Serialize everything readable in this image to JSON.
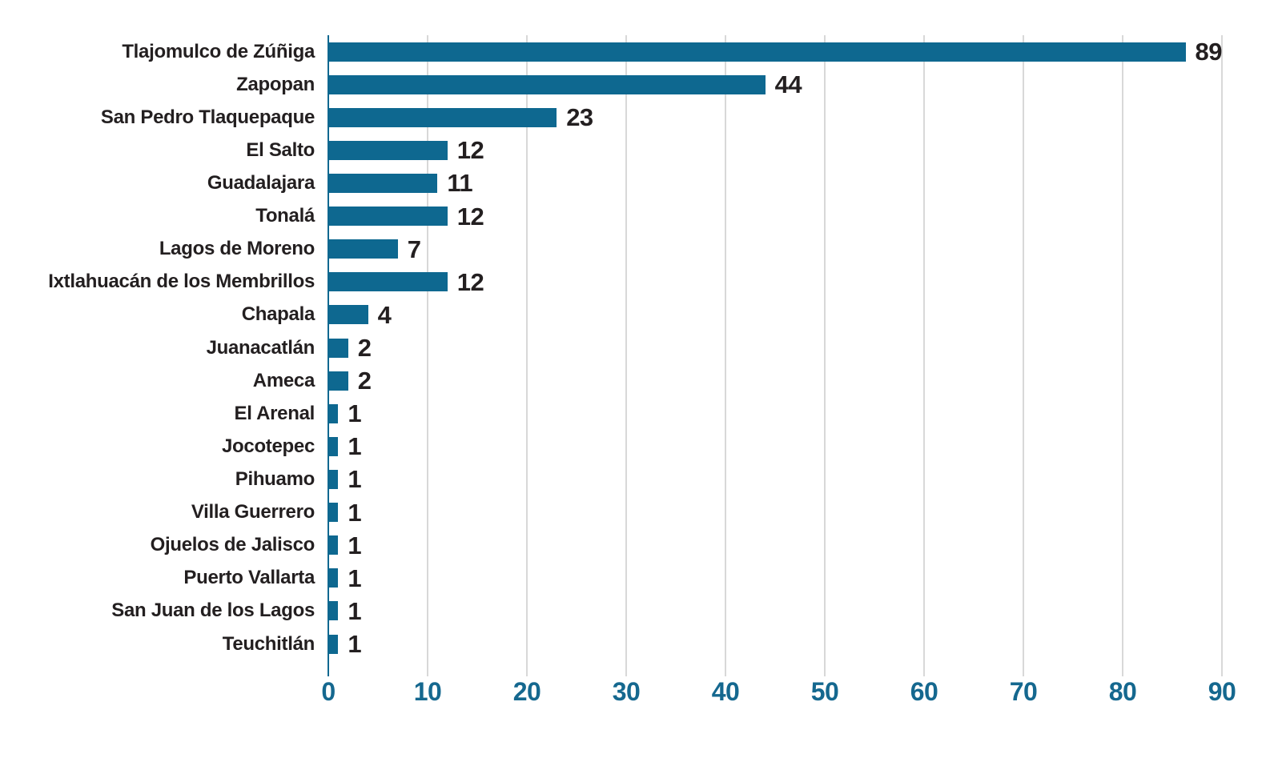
{
  "chart_data": {
    "type": "bar",
    "orientation": "horizontal",
    "title": "",
    "xlabel": "",
    "ylabel": "",
    "categories": [
      "Tlajomulco de Zúñiga",
      "Zapopan",
      "San Pedro Tlaquepaque",
      "El Salto",
      "Guadalajara",
      "Tonalá",
      "Lagos de Moreno",
      "Ixtlahuacán de los Membrillos",
      "Chapala",
      "Juanacatlán",
      "Ameca",
      "El Arenal",
      "Jocotepec",
      "Pihuamo",
      "Villa Guerrero",
      "Ojuelos de Jalisco",
      "Puerto Vallarta",
      "San Juan de los Lagos",
      "Teuchitlán"
    ],
    "values": [
      89,
      44,
      23,
      12,
      11,
      12,
      7,
      12,
      4,
      2,
      2,
      1,
      1,
      1,
      1,
      1,
      1,
      1,
      1
    ],
    "data_labels_shown": true,
    "x_ticks": [
      0,
      10,
      20,
      30,
      40,
      50,
      60,
      70,
      80,
      90
    ],
    "xlim": [
      0,
      90
    ],
    "grid": "vertical",
    "legend": "none",
    "colors": {
      "bar": "#0e6890",
      "axis_line": "#0e6890",
      "tick_label": "#15688f",
      "category_label": "#231f20",
      "value_label": "#231f20",
      "gridline": "#d8d8d8",
      "background": "#ffffff"
    }
  }
}
